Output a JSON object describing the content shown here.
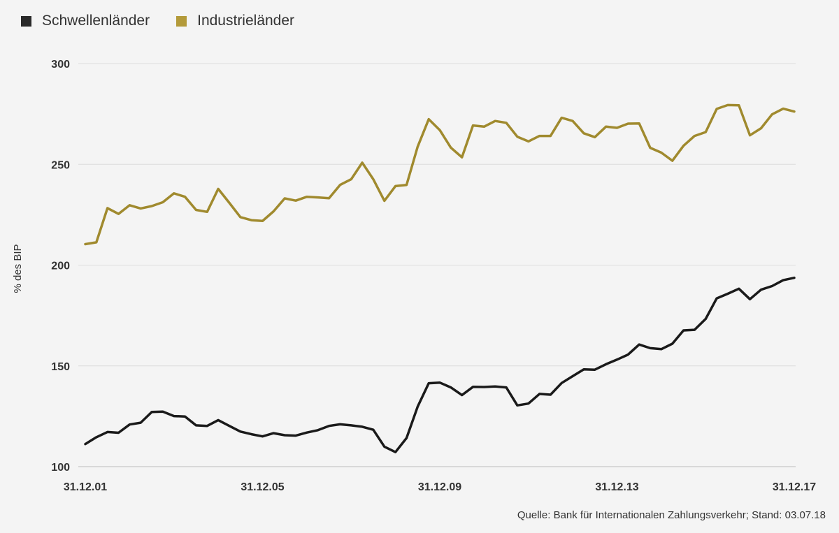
{
  "legend": [
    {
      "label": "Schwellenländer",
      "color": "#1a1a1a"
    },
    {
      "label": "Industrieländer",
      "color": "#a08a2e"
    }
  ],
  "source": "Quelle: Bank für Internationalen Zahlungsverkehr; Stand: 03.07.18",
  "chart_data": {
    "type": "line",
    "title": "",
    "xlabel": "",
    "ylabel": "% des BIP",
    "ylim": [
      100,
      300
    ],
    "yticks": [
      100,
      150,
      200,
      250,
      300
    ],
    "xtick_labels": [
      {
        "label": "31.12.01",
        "index": 0
      },
      {
        "label": "31.12.05",
        "index": 16
      },
      {
        "label": "31.12.09",
        "index": 32
      },
      {
        "label": "31.12.13",
        "index": 48
      },
      {
        "label": "31.12.17",
        "index": 64
      }
    ],
    "grid": true,
    "legend_position": "top-left",
    "series": [
      {
        "name": "Schwellenländer",
        "color": "#1a1a1a",
        "values": [
          111.2,
          114.6,
          117.2,
          116.8,
          120.9,
          121.8,
          127.1,
          127.3,
          125.1,
          124.9,
          120.5,
          120.2,
          123.1,
          120.2,
          117.4,
          116.1,
          115.0,
          116.6,
          115.6,
          115.4,
          116.9,
          118.1,
          120.2,
          121.0,
          120.5,
          119.8,
          118.3,
          109.9,
          107.2,
          114.2,
          129.7,
          141.4,
          141.7,
          139.3,
          135.5,
          139.6,
          139.5,
          139.8,
          139.3,
          130.4,
          131.3,
          136.1,
          135.7,
          141.5,
          144.9,
          148.3,
          148.1,
          150.8,
          153.1,
          155.6,
          160.6,
          158.8,
          158.3,
          161.0,
          167.6,
          167.9,
          173.3,
          183.5,
          185.8,
          188.3,
          183.1,
          187.8,
          189.6,
          192.5,
          193.7
        ]
      },
      {
        "name": "Industrieländer",
        "color": "#a08a2e",
        "values": [
          210.4,
          211.3,
          228.3,
          225.4,
          229.7,
          228.1,
          229.3,
          231.2,
          235.6,
          233.9,
          227.4,
          226.4,
          237.8,
          230.9,
          223.8,
          222.3,
          221.9,
          226.7,
          233.1,
          232.0,
          233.9,
          233.6,
          233.2,
          239.8,
          242.6,
          250.8,
          242.6,
          231.9,
          239.2,
          239.8,
          258.7,
          272.4,
          267.0,
          258.3,
          253.5,
          269.3,
          268.7,
          271.5,
          270.6,
          263.7,
          261.4,
          264.1,
          264.1,
          273.1,
          271.5,
          265.4,
          263.5,
          268.7,
          268.1,
          270.2,
          270.3,
          258.2,
          255.8,
          251.8,
          259.2,
          264.1,
          266.0,
          277.5,
          279.4,
          279.3,
          264.4,
          267.9,
          274.8,
          277.6,
          276.2
        ]
      }
    ]
  }
}
